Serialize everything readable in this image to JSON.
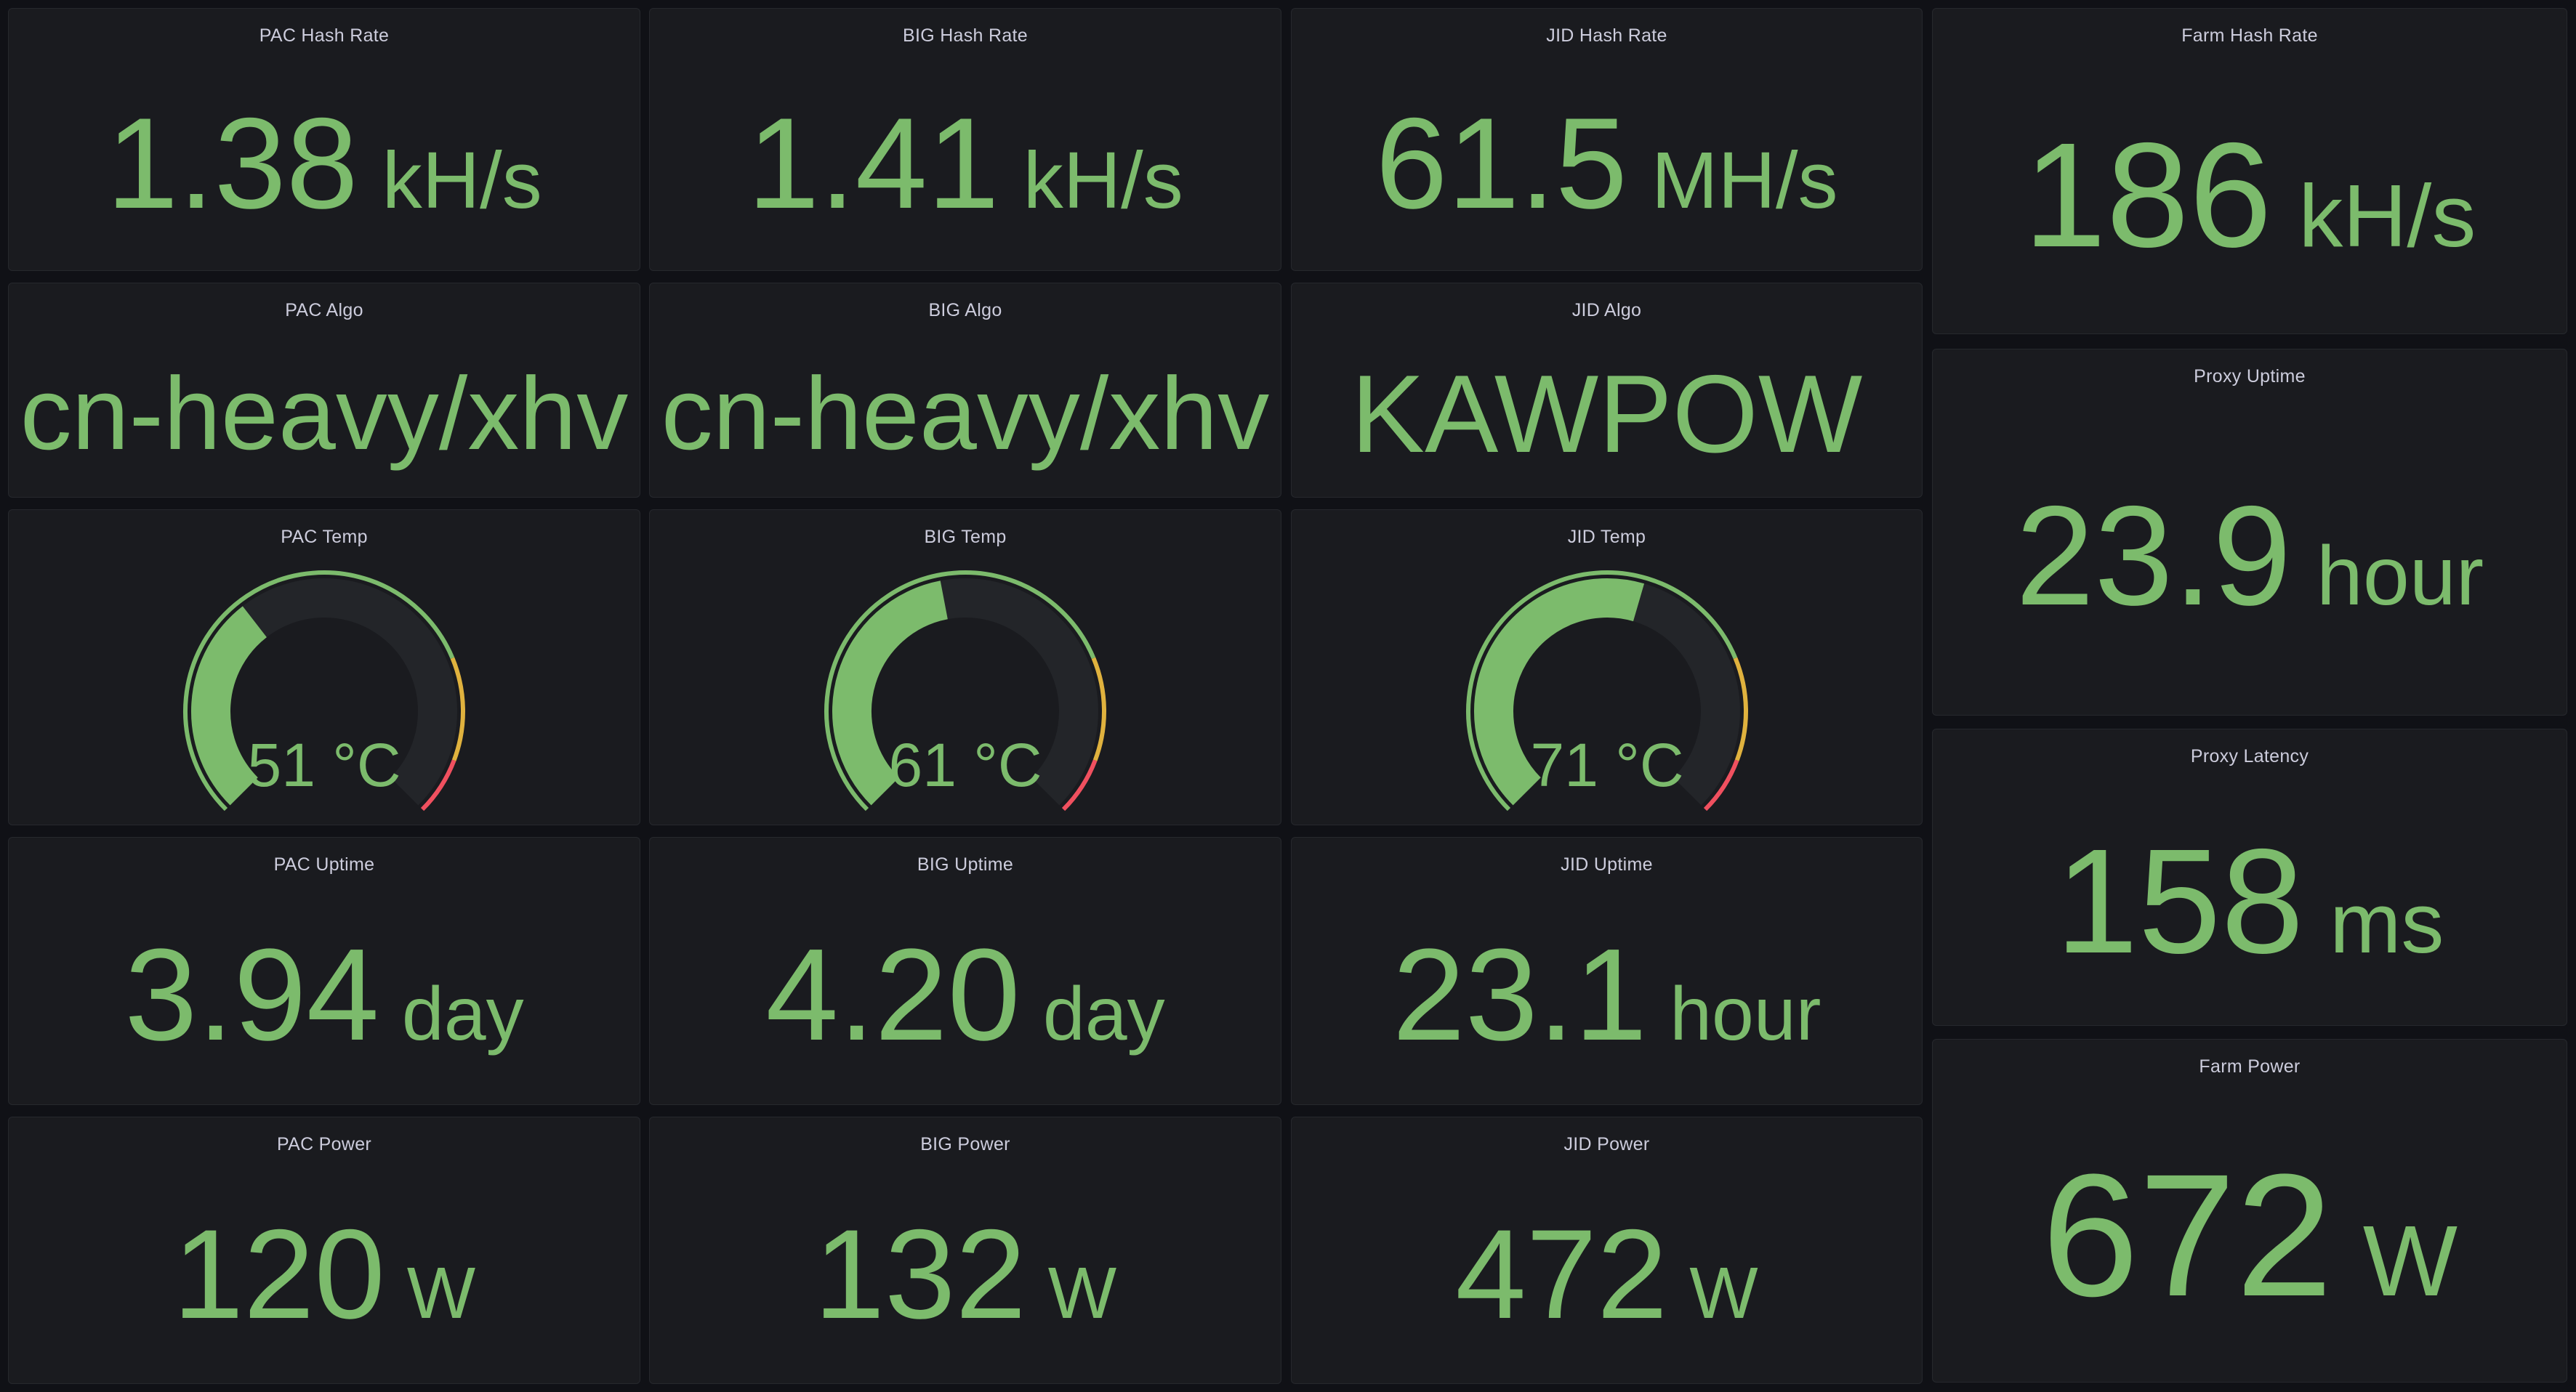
{
  "theme": {
    "page_bg": "#101116",
    "panel_bg": "#1A1B1F",
    "panel_border": "#26282D",
    "title_color": "#CCCCDC",
    "green": "#7CBB6C",
    "yellow": "#E0B23E",
    "red": "#F0505F",
    "gauge_track": "#232529"
  },
  "panels": {
    "pac_hash": {
      "title": "PAC Hash Rate",
      "value": "1.38",
      "unit": "kH/s"
    },
    "big_hash": {
      "title": "BIG Hash Rate",
      "value": "1.41",
      "unit": "kH/s"
    },
    "jid_hash": {
      "title": "JID Hash Rate",
      "value": "61.5",
      "unit": "MH/s"
    },
    "farm_hash": {
      "title": "Farm Hash Rate",
      "value": "186",
      "unit": "kH/s"
    },
    "pac_algo": {
      "title": "PAC Algo",
      "value": "cn-heavy/xhv"
    },
    "big_algo": {
      "title": "BIG Algo",
      "value": "cn-heavy/xhv"
    },
    "jid_algo": {
      "title": "JID Algo",
      "value": "KAWPOW"
    },
    "proxy_uptime": {
      "title": "Proxy Uptime",
      "value": "23.9",
      "unit": "hour"
    },
    "pac_temp": {
      "title": "PAC Temp",
      "value": 51,
      "unit": "°C",
      "gauge": {
        "type": "gauge",
        "min": 15,
        "max": 115,
        "thresholds": [
          {
            "from": 15,
            "color": "green"
          },
          {
            "from": 90,
            "color": "yellow"
          },
          {
            "from": 106,
            "color": "red"
          }
        ]
      }
    },
    "big_temp": {
      "title": "BIG Temp",
      "value": 61,
      "unit": "°C",
      "gauge": {
        "type": "gauge",
        "min": 15,
        "max": 115,
        "thresholds": [
          {
            "from": 15,
            "color": "green"
          },
          {
            "from": 90,
            "color": "yellow"
          },
          {
            "from": 106,
            "color": "red"
          }
        ]
      }
    },
    "jid_temp": {
      "title": "JID Temp",
      "value": 71,
      "unit": "°C",
      "gauge": {
        "type": "gauge",
        "min": 15,
        "max": 115,
        "thresholds": [
          {
            "from": 15,
            "color": "green"
          },
          {
            "from": 90,
            "color": "yellow"
          },
          {
            "from": 106,
            "color": "red"
          }
        ]
      }
    },
    "proxy_latency": {
      "title": "Proxy Latency",
      "value": "158",
      "unit": "ms"
    },
    "pac_uptime": {
      "title": "PAC Uptime",
      "value": "3.94",
      "unit": "day"
    },
    "big_uptime": {
      "title": "BIG Uptime",
      "value": "4.20",
      "unit": "day"
    },
    "jid_uptime": {
      "title": "JID Uptime",
      "value": "23.1",
      "unit": "hour"
    },
    "farm_power": {
      "title": "Farm Power",
      "value": "672",
      "unit": "W"
    },
    "pac_power": {
      "title": "PAC Power",
      "value": "120",
      "unit": "W"
    },
    "big_power": {
      "title": "BIG Power",
      "value": "132",
      "unit": "W"
    },
    "jid_power": {
      "title": "JID Power",
      "value": "472",
      "unit": "W"
    }
  }
}
